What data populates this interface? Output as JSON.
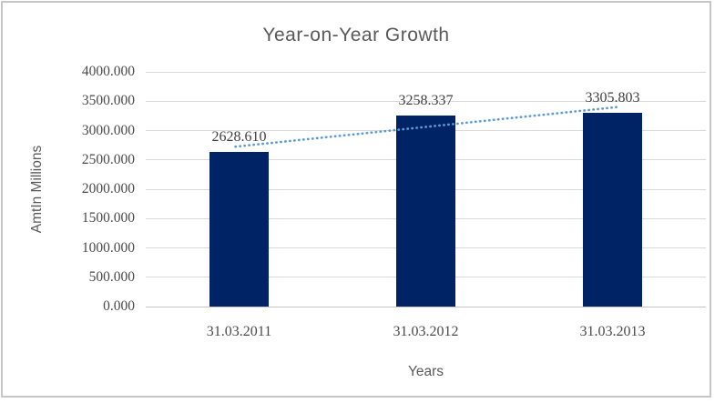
{
  "window": {
    "background": "#ffffff",
    "border_color": "#c6c6c6"
  },
  "chart_data": {
    "type": "bar",
    "title": "Year-on-Year Growth",
    "categories": [
      "31.03.2011",
      "31.03.2012",
      "31.03.2013"
    ],
    "values": [
      2628.61,
      3258.337,
      3305.803
    ],
    "data_labels": [
      "2628.610",
      "3258.337",
      "3305.803"
    ],
    "xlabel": "Years",
    "ylabel": "AmtIn Millions",
    "ylim": [
      0,
      4000
    ],
    "ytick_step": 500,
    "ytick_labels": [
      "0.000",
      "500.000",
      "1000.000",
      "1500.000",
      "2000.000",
      "2500.000",
      "3000.000",
      "3500.000",
      "4000.000"
    ],
    "grid": true,
    "legend": "none",
    "trendline": {
      "type": "linear",
      "style": "dotted",
      "color": "#5B9BD5",
      "fitted_values": [
        2725.65,
        3064.25,
        3402.85
      ]
    },
    "colors": {
      "bar": "#002366",
      "gridline": "#D9D9D9",
      "axis_line": "#C6C6C6",
      "title_text": "#595959",
      "axis_title_text": "#595959",
      "tick_text": "#4A4A4A",
      "data_label_text": "#3F3F3F"
    }
  }
}
